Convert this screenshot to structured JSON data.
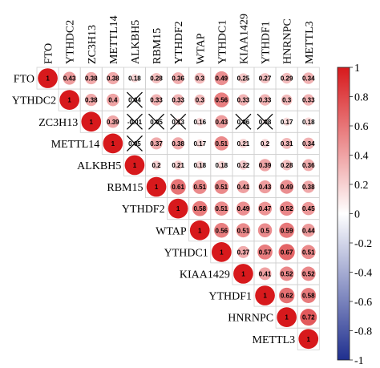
{
  "chart_data": {
    "type": "heatmap",
    "subtype": "correlation-upper-triangle",
    "variables": [
      "FTO",
      "YTHDC2",
      "ZC3H13",
      "METTL14",
      "ALKBH5",
      "RBM15",
      "YTHDF2",
      "WTAP",
      "YTHDC1",
      "KIAA1429",
      "YTHDF1",
      "HNRNPC",
      "METTL3"
    ],
    "matrix": [
      [
        1,
        0.43,
        0.38,
        0.38,
        0.18,
        0.28,
        0.36,
        0.3,
        0.49,
        0.25,
        0.27,
        0.29,
        0.34
      ],
      [
        null,
        1,
        0.38,
        0.4,
        0.04,
        0.33,
        0.33,
        0.3,
        0.56,
        0.33,
        0.33,
        0.3,
        0.33
      ],
      [
        null,
        null,
        1,
        0.39,
        -0.01,
        0.05,
        0.13,
        0.16,
        0.43,
        0.06,
        0.08,
        0.17,
        0.18
      ],
      [
        null,
        null,
        null,
        1,
        0.05,
        0.37,
        0.38,
        0.17,
        0.51,
        0.21,
        0.2,
        0.31,
        0.34
      ],
      [
        null,
        null,
        null,
        null,
        1,
        0.2,
        0.21,
        0.18,
        0.18,
        0.22,
        0.39,
        0.28,
        0.36
      ],
      [
        null,
        null,
        null,
        null,
        null,
        1,
        0.61,
        0.51,
        0.51,
        0.41,
        0.43,
        0.49,
        0.38
      ],
      [
        null,
        null,
        null,
        null,
        null,
        null,
        1,
        0.58,
        0.51,
        0.49,
        0.47,
        0.52,
        0.45
      ],
      [
        null,
        null,
        null,
        null,
        null,
        null,
        null,
        1,
        0.56,
        0.51,
        0.5,
        0.59,
        0.44
      ],
      [
        null,
        null,
        null,
        null,
        null,
        null,
        null,
        null,
        1,
        0.37,
        0.57,
        0.67,
        0.51
      ],
      [
        null,
        null,
        null,
        null,
        null,
        null,
        null,
        null,
        null,
        1,
        0.41,
        0.52,
        0.52
      ],
      [
        null,
        null,
        null,
        null,
        null,
        null,
        null,
        null,
        null,
        null,
        1,
        0.62,
        0.58
      ],
      [
        null,
        null,
        null,
        null,
        null,
        null,
        null,
        null,
        null,
        null,
        null,
        1,
        0.72
      ],
      [
        null,
        null,
        null,
        null,
        null,
        null,
        null,
        null,
        null,
        null,
        null,
        null,
        1
      ]
    ],
    "crossed": [
      [
        1,
        4
      ],
      [
        2,
        4
      ],
      [
        2,
        5
      ],
      [
        2,
        6
      ],
      [
        2,
        9
      ],
      [
        2,
        10
      ],
      [
        3,
        4
      ]
    ],
    "value_labels": [
      [
        "1",
        "0.43",
        "0.38",
        "0.38",
        "0.18",
        "0.28",
        "0.36",
        "0.3",
        "0.49",
        "0.25",
        "0.27",
        "0.29",
        "0.34"
      ],
      [
        null,
        "1",
        "0.38",
        "0.4",
        "0.04",
        "0.33",
        "0.33",
        "0.3",
        "0.56",
        "0.33",
        "0.33",
        "0.3",
        "0.33"
      ],
      [
        null,
        null,
        "1",
        "0.39",
        "-0.01",
        "0.05",
        "0.13",
        "0.16",
        "0.43",
        "0.06",
        "0.08",
        "0.17",
        "0.18"
      ],
      [
        null,
        null,
        null,
        "1",
        "0.05",
        "0.37",
        "0.38",
        "0.17",
        "0.51",
        "0.21",
        "0.2",
        "0.31",
        "0.34"
      ],
      [
        null,
        null,
        null,
        null,
        "1",
        "0.2",
        "0.21",
        "0.18",
        "0.18",
        "0.22",
        "0.39",
        "0.28",
        "0.36"
      ],
      [
        null,
        null,
        null,
        null,
        null,
        "1",
        "0.61",
        "0.51",
        "0.51",
        "0.41",
        "0.43",
        "0.49",
        "0.38"
      ],
      [
        null,
        null,
        null,
        null,
        null,
        null,
        "1",
        "0.58",
        "0.51",
        "0.49",
        "0.47",
        "0.52",
        "0.45"
      ],
      [
        null,
        null,
        null,
        null,
        null,
        null,
        null,
        "1",
        "0.56",
        "0.51",
        "0.5",
        "0.59",
        "0.44"
      ],
      [
        null,
        null,
        null,
        null,
        null,
        null,
        null,
        null,
        "1",
        "0.37",
        "0.57",
        "0.67",
        "0.51"
      ],
      [
        null,
        null,
        null,
        null,
        null,
        null,
        null,
        null,
        null,
        "1",
        "0.41",
        "0.52",
        "0.52"
      ],
      [
        null,
        null,
        null,
        null,
        null,
        null,
        null,
        null,
        null,
        null,
        "1",
        "0.62",
        "0.58"
      ],
      [
        null,
        null,
        null,
        null,
        null,
        null,
        null,
        null,
        null,
        null,
        null,
        "1",
        "0.72"
      ],
      [
        null,
        null,
        null,
        null,
        null,
        null,
        null,
        null,
        null,
        null,
        null,
        null,
        "1"
      ]
    ],
    "colorbar": {
      "range": [
        -1,
        1
      ],
      "ticks": [
        1,
        0.8,
        0.6,
        0.4,
        0.2,
        0,
        -0.2,
        -0.4,
        -0.6,
        -0.8,
        -1
      ],
      "tick_labels": [
        "1",
        "0.8",
        "0.6",
        "0.4",
        "0.2",
        "0",
        "-0.2",
        "-0.4",
        "-0.6",
        "-0.8",
        "-1"
      ],
      "colors": {
        "positive": "#d7191c",
        "neutral": "#ffffff",
        "negative": "#1f2f8f"
      }
    },
    "title": "",
    "xlabel": "",
    "ylabel": "",
    "grid": true,
    "legend": "colorbar-right"
  }
}
